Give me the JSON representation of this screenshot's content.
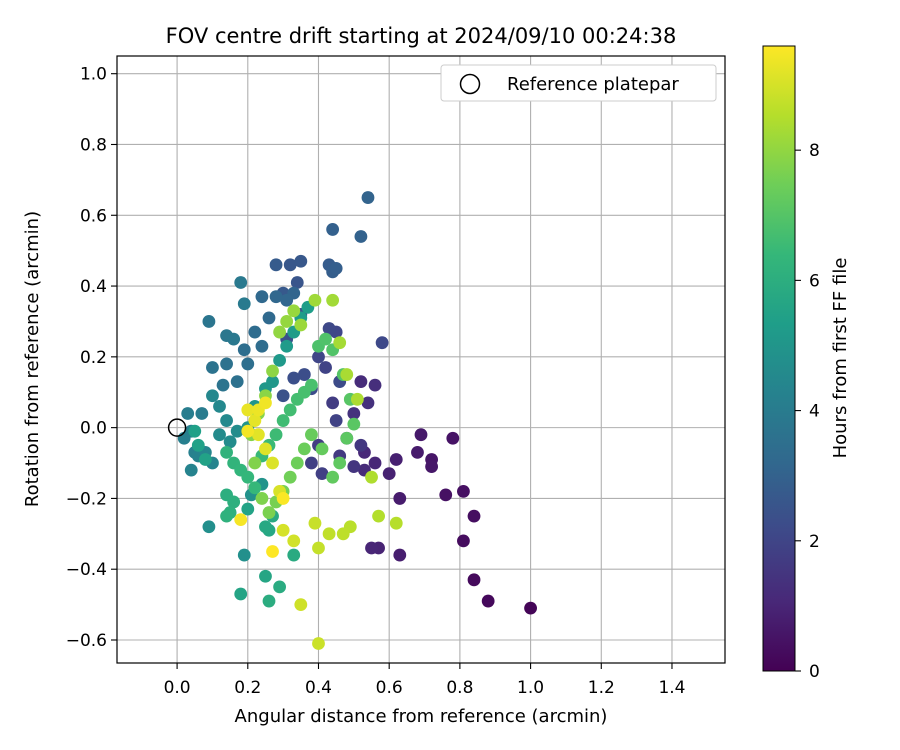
{
  "chart_data": {
    "type": "scatter",
    "title": "FOV centre drift starting at 2024/09/10 00:24:38",
    "xlabel": "Angular distance from reference (arcmin)",
    "ylabel": "Rotation from reference (arcmin)",
    "xlim": [
      -0.17,
      1.55
    ],
    "ylim": [
      -0.665,
      1.05
    ],
    "xticks": [
      0.0,
      0.2,
      0.4,
      0.6,
      0.8,
      1.0,
      1.2,
      1.4
    ],
    "yticks": [
      1.0,
      0.8,
      0.6,
      0.4,
      0.2,
      0.0,
      -0.2,
      -0.4,
      -0.6
    ],
    "xtick_labels": [
      "0.0",
      "0.2",
      "0.4",
      "0.6",
      "0.8",
      "1.0",
      "1.2",
      "1.4"
    ],
    "ytick_labels": [
      "1.0",
      "0.8",
      "0.6",
      "0.4",
      "0.2",
      "0.0",
      "−0.2",
      "−0.4",
      "−0.6"
    ],
    "grid": true,
    "legend": {
      "position": "top-right",
      "entries": [
        {
          "label": "Reference platepar",
          "marker": "open-circle"
        }
      ]
    },
    "reference_point": {
      "x": 0.0,
      "y": 0.0
    },
    "colorbar": {
      "label": "Hours from first FF file",
      "range": [
        0,
        9.6
      ],
      "ticks": [
        0,
        2,
        4,
        6,
        8
      ],
      "tick_labels": [
        "0",
        "2",
        "4",
        "6",
        "8"
      ],
      "colormap": "viridis",
      "stops": [
        "#440154",
        "#482878",
        "#3e4989",
        "#31688e",
        "#26828e",
        "#1f9e89",
        "#35b779",
        "#6ece58",
        "#b5de2b",
        "#fde725"
      ]
    },
    "series": [
      {
        "color_key": "hours",
        "points": [
          [
            1.0,
            -0.51,
            0.1
          ],
          [
            0.88,
            -0.49,
            0.2
          ],
          [
            0.84,
            -0.43,
            0.25
          ],
          [
            0.81,
            -0.32,
            0.3
          ],
          [
            0.84,
            -0.25,
            0.35
          ],
          [
            0.81,
            -0.18,
            0.4
          ],
          [
            0.76,
            -0.19,
            0.45
          ],
          [
            0.78,
            -0.03,
            0.5
          ],
          [
            0.72,
            -0.09,
            0.55
          ],
          [
            0.72,
            -0.11,
            0.6
          ],
          [
            0.69,
            -0.02,
            0.65
          ],
          [
            0.68,
            -0.07,
            0.7
          ],
          [
            0.63,
            -0.2,
            0.75
          ],
          [
            0.63,
            -0.36,
            0.8
          ],
          [
            0.62,
            -0.09,
            0.85
          ],
          [
            0.6,
            -0.13,
            0.9
          ],
          [
            0.57,
            -0.34,
            0.95
          ],
          [
            0.55,
            -0.34,
            1.0
          ],
          [
            0.56,
            -0.1,
            1.05
          ],
          [
            0.53,
            -0.07,
            1.1
          ],
          [
            0.53,
            -0.12,
            1.15
          ],
          [
            0.52,
            0.13,
            1.2
          ],
          [
            0.56,
            0.12,
            1.3
          ],
          [
            0.54,
            0.07,
            1.35
          ],
          [
            0.5,
            0.04,
            1.4
          ],
          [
            0.48,
            -0.03,
            1.45
          ],
          [
            0.5,
            -0.11,
            1.5
          ],
          [
            0.52,
            -0.05,
            1.55
          ],
          [
            0.46,
            -0.08,
            1.6
          ],
          [
            0.44,
            0.07,
            1.7
          ],
          [
            0.4,
            -0.05,
            1.75
          ],
          [
            0.38,
            -0.1,
            1.8
          ],
          [
            0.41,
            -0.13,
            1.85
          ],
          [
            0.45,
            0.02,
            1.9
          ],
          [
            0.42,
            0.17,
            1.95
          ],
          [
            0.4,
            0.2,
            2.0
          ],
          [
            0.45,
            0.27,
            2.05
          ],
          [
            0.43,
            0.28,
            2.1
          ],
          [
            0.58,
            0.24,
            2.15
          ],
          [
            0.46,
            0.13,
            2.2
          ],
          [
            0.38,
            0.11,
            2.25
          ],
          [
            0.36,
            0.15,
            2.3
          ],
          [
            0.33,
            0.14,
            2.35
          ],
          [
            0.3,
            0.09,
            2.4
          ],
          [
            0.31,
            0.25,
            2.45
          ],
          [
            0.35,
            0.32,
            2.5
          ],
          [
            0.34,
            0.41,
            2.55
          ],
          [
            0.32,
            0.46,
            2.6
          ],
          [
            0.35,
            0.47,
            2.65
          ],
          [
            0.3,
            0.38,
            2.7
          ],
          [
            0.28,
            0.46,
            2.75
          ],
          [
            0.43,
            0.46,
            2.8
          ],
          [
            0.44,
            0.44,
            2.85
          ],
          [
            0.45,
            0.45,
            2.9
          ],
          [
            0.44,
            0.56,
            2.95
          ],
          [
            0.52,
            0.54,
            3.0
          ],
          [
            0.54,
            0.65,
            3.05
          ],
          [
            0.33,
            0.38,
            3.1
          ],
          [
            0.31,
            0.36,
            3.15
          ],
          [
            0.28,
            0.37,
            3.2
          ],
          [
            0.24,
            0.37,
            3.25
          ],
          [
            0.26,
            0.31,
            3.3
          ],
          [
            0.22,
            0.27,
            3.35
          ],
          [
            0.24,
            0.23,
            3.4
          ],
          [
            0.19,
            0.22,
            3.45
          ],
          [
            0.2,
            0.18,
            3.5
          ],
          [
            0.17,
            0.13,
            3.55
          ],
          [
            0.14,
            0.18,
            3.6
          ],
          [
            0.1,
            0.17,
            3.65
          ],
          [
            0.13,
            0.12,
            3.7
          ],
          [
            0.09,
            0.3,
            3.75
          ],
          [
            0.14,
            0.26,
            3.8
          ],
          [
            0.16,
            0.25,
            3.85
          ],
          [
            0.18,
            0.41,
            3.9
          ],
          [
            0.19,
            0.35,
            3.95
          ],
          [
            0.07,
            0.04,
            4.0
          ],
          [
            0.03,
            0.04,
            4.05
          ],
          [
            0.04,
            -0.01,
            4.1
          ],
          [
            0.02,
            -0.03,
            4.15
          ],
          [
            0.05,
            -0.07,
            4.2
          ],
          [
            0.06,
            -0.08,
            4.25
          ],
          [
            0.04,
            -0.12,
            4.3
          ],
          [
            0.1,
            -0.1,
            4.35
          ],
          [
            0.08,
            -0.07,
            4.4
          ],
          [
            0.1,
            0.09,
            4.45
          ],
          [
            0.12,
            0.06,
            4.5
          ],
          [
            0.14,
            0.02,
            4.55
          ],
          [
            0.12,
            -0.02,
            4.6
          ],
          [
            0.15,
            -0.04,
            4.65
          ],
          [
            0.17,
            -0.01,
            4.7
          ],
          [
            0.09,
            -0.28,
            4.75
          ],
          [
            0.19,
            -0.36,
            4.8
          ],
          [
            0.21,
            -0.19,
            4.85
          ],
          [
            0.24,
            -0.16,
            4.9
          ],
          [
            0.2,
            0.0,
            4.95
          ],
          [
            0.22,
            0.06,
            5.0
          ],
          [
            0.25,
            0.11,
            5.05
          ],
          [
            0.27,
            0.13,
            5.1
          ],
          [
            0.29,
            0.19,
            5.15
          ],
          [
            0.31,
            0.23,
            5.2
          ],
          [
            0.33,
            0.27,
            5.25
          ],
          [
            0.35,
            0.31,
            5.3
          ],
          [
            0.37,
            0.34,
            5.35
          ],
          [
            0.05,
            -0.01,
            5.4
          ],
          [
            0.06,
            -0.05,
            5.45
          ],
          [
            0.08,
            -0.09,
            5.5
          ],
          [
            0.2,
            -0.23,
            5.55
          ],
          [
            0.18,
            -0.47,
            5.6
          ],
          [
            0.25,
            -0.42,
            5.65
          ],
          [
            0.26,
            -0.29,
            5.7
          ],
          [
            0.25,
            -0.28,
            5.75
          ],
          [
            0.27,
            -0.25,
            5.8
          ],
          [
            0.33,
            -0.36,
            5.85
          ],
          [
            0.29,
            -0.45,
            5.9
          ],
          [
            0.26,
            -0.49,
            5.95
          ],
          [
            0.14,
            -0.19,
            6.0
          ],
          [
            0.16,
            -0.21,
            6.05
          ],
          [
            0.15,
            -0.24,
            6.1
          ],
          [
            0.14,
            -0.25,
            6.15
          ],
          [
            0.14,
            -0.07,
            6.2
          ],
          [
            0.16,
            -0.1,
            6.25
          ],
          [
            0.18,
            -0.12,
            6.3
          ],
          [
            0.2,
            -0.14,
            6.35
          ],
          [
            0.22,
            -0.17,
            6.4
          ],
          [
            0.24,
            -0.08,
            6.45
          ],
          [
            0.26,
            -0.05,
            6.5
          ],
          [
            0.28,
            -0.02,
            6.55
          ],
          [
            0.3,
            0.02,
            6.6
          ],
          [
            0.32,
            0.05,
            6.65
          ],
          [
            0.34,
            0.08,
            6.7
          ],
          [
            0.36,
            0.1,
            6.75
          ],
          [
            0.38,
            0.12,
            6.8
          ],
          [
            0.4,
            0.23,
            6.85
          ],
          [
            0.42,
            0.25,
            6.9
          ],
          [
            0.44,
            0.22,
            6.95
          ],
          [
            0.47,
            0.15,
            7.0
          ],
          [
            0.49,
            0.08,
            7.05
          ],
          [
            0.5,
            0.01,
            7.1
          ],
          [
            0.48,
            -0.03,
            7.15
          ],
          [
            0.46,
            -0.1,
            7.2
          ],
          [
            0.44,
            -0.14,
            7.25
          ],
          [
            0.41,
            -0.06,
            7.3
          ],
          [
            0.38,
            -0.02,
            7.35
          ],
          [
            0.36,
            -0.06,
            7.4
          ],
          [
            0.34,
            -0.1,
            7.45
          ],
          [
            0.32,
            -0.14,
            7.5
          ],
          [
            0.3,
            -0.18,
            7.55
          ],
          [
            0.28,
            -0.21,
            7.6
          ],
          [
            0.26,
            -0.24,
            7.65
          ],
          [
            0.24,
            -0.2,
            7.7
          ],
          [
            0.22,
            -0.1,
            7.75
          ],
          [
            0.21,
            -0.02,
            7.8
          ],
          [
            0.23,
            0.04,
            7.85
          ],
          [
            0.25,
            0.09,
            7.9
          ],
          [
            0.27,
            0.16,
            7.95
          ],
          [
            0.29,
            0.27,
            8.0
          ],
          [
            0.31,
            0.3,
            8.05
          ],
          [
            0.33,
            0.33,
            8.1
          ],
          [
            0.35,
            0.29,
            8.15
          ],
          [
            0.39,
            0.36,
            8.2
          ],
          [
            0.44,
            0.36,
            8.25
          ],
          [
            0.46,
            0.24,
            8.3
          ],
          [
            0.48,
            0.15,
            8.35
          ],
          [
            0.51,
            0.08,
            8.4
          ],
          [
            0.55,
            -0.14,
            8.45
          ],
          [
            0.57,
            -0.25,
            8.5
          ],
          [
            0.62,
            -0.27,
            8.55
          ],
          [
            0.49,
            -0.28,
            8.6
          ],
          [
            0.47,
            -0.3,
            8.65
          ],
          [
            0.43,
            -0.3,
            8.7
          ],
          [
            0.4,
            -0.34,
            8.75
          ],
          [
            0.39,
            -0.27,
            8.8
          ],
          [
            0.4,
            -0.61,
            8.85
          ],
          [
            0.35,
            -0.5,
            8.9
          ],
          [
            0.33,
            -0.32,
            8.95
          ],
          [
            0.3,
            -0.29,
            9.0
          ],
          [
            0.29,
            -0.18,
            9.05
          ],
          [
            0.27,
            -0.1,
            9.1
          ],
          [
            0.25,
            -0.06,
            9.15
          ],
          [
            0.23,
            -0.02,
            9.2
          ],
          [
            0.22,
            0.02,
            9.25
          ],
          [
            0.2,
            0.05,
            9.3
          ],
          [
            0.23,
            0.05,
            9.35
          ],
          [
            0.25,
            0.07,
            9.4
          ],
          [
            0.2,
            -0.01,
            9.45
          ],
          [
            0.18,
            -0.26,
            9.5
          ],
          [
            0.3,
            -0.2,
            9.55
          ],
          [
            0.27,
            -0.35,
            9.6
          ]
        ]
      }
    ]
  }
}
